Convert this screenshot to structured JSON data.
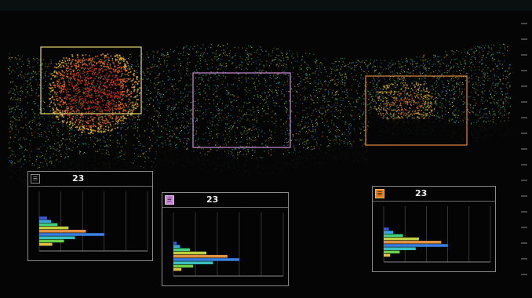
{
  "topbar": {
    "items": [
      "",
      "",
      "",
      "",
      "",
      "",
      ""
    ]
  },
  "depth_scale": {
    "mid_label": "",
    "bottom_label": ""
  },
  "panels": [
    {
      "id": "left",
      "value": "23",
      "unit": "",
      "stat1": "",
      "stat2": "",
      "stat3": "",
      "stat4": "",
      "icon": "fish-school-icon",
      "bars": [
        0.12,
        0.18,
        0.28,
        0.45,
        0.72,
        1.0,
        0.55,
        0.38,
        0.2
      ]
    },
    {
      "id": "center",
      "value": "23",
      "unit": "",
      "stat1": "",
      "stat2": "",
      "stat3": "",
      "stat4": "",
      "icon": "fish-school-icon",
      "bars": [
        0.05,
        0.1,
        0.25,
        0.5,
        0.82,
        1.0,
        0.6,
        0.3,
        0.12
      ]
    },
    {
      "id": "right",
      "value": "23",
      "unit": "",
      "stat1": "",
      "stat2": "",
      "stat3": "",
      "stat4": "",
      "icon": "fish-school-icon",
      "bars": [
        0.08,
        0.15,
        0.3,
        0.55,
        0.9,
        1.0,
        0.5,
        0.25,
        0.1
      ]
    }
  ],
  "colors": {
    "frame_left": "#e6d46a",
    "frame_center": "#c98bd6",
    "frame_right": "#e08a40",
    "accent_orange": "#e07f1e",
    "accent_purple": "#c98bd6"
  }
}
